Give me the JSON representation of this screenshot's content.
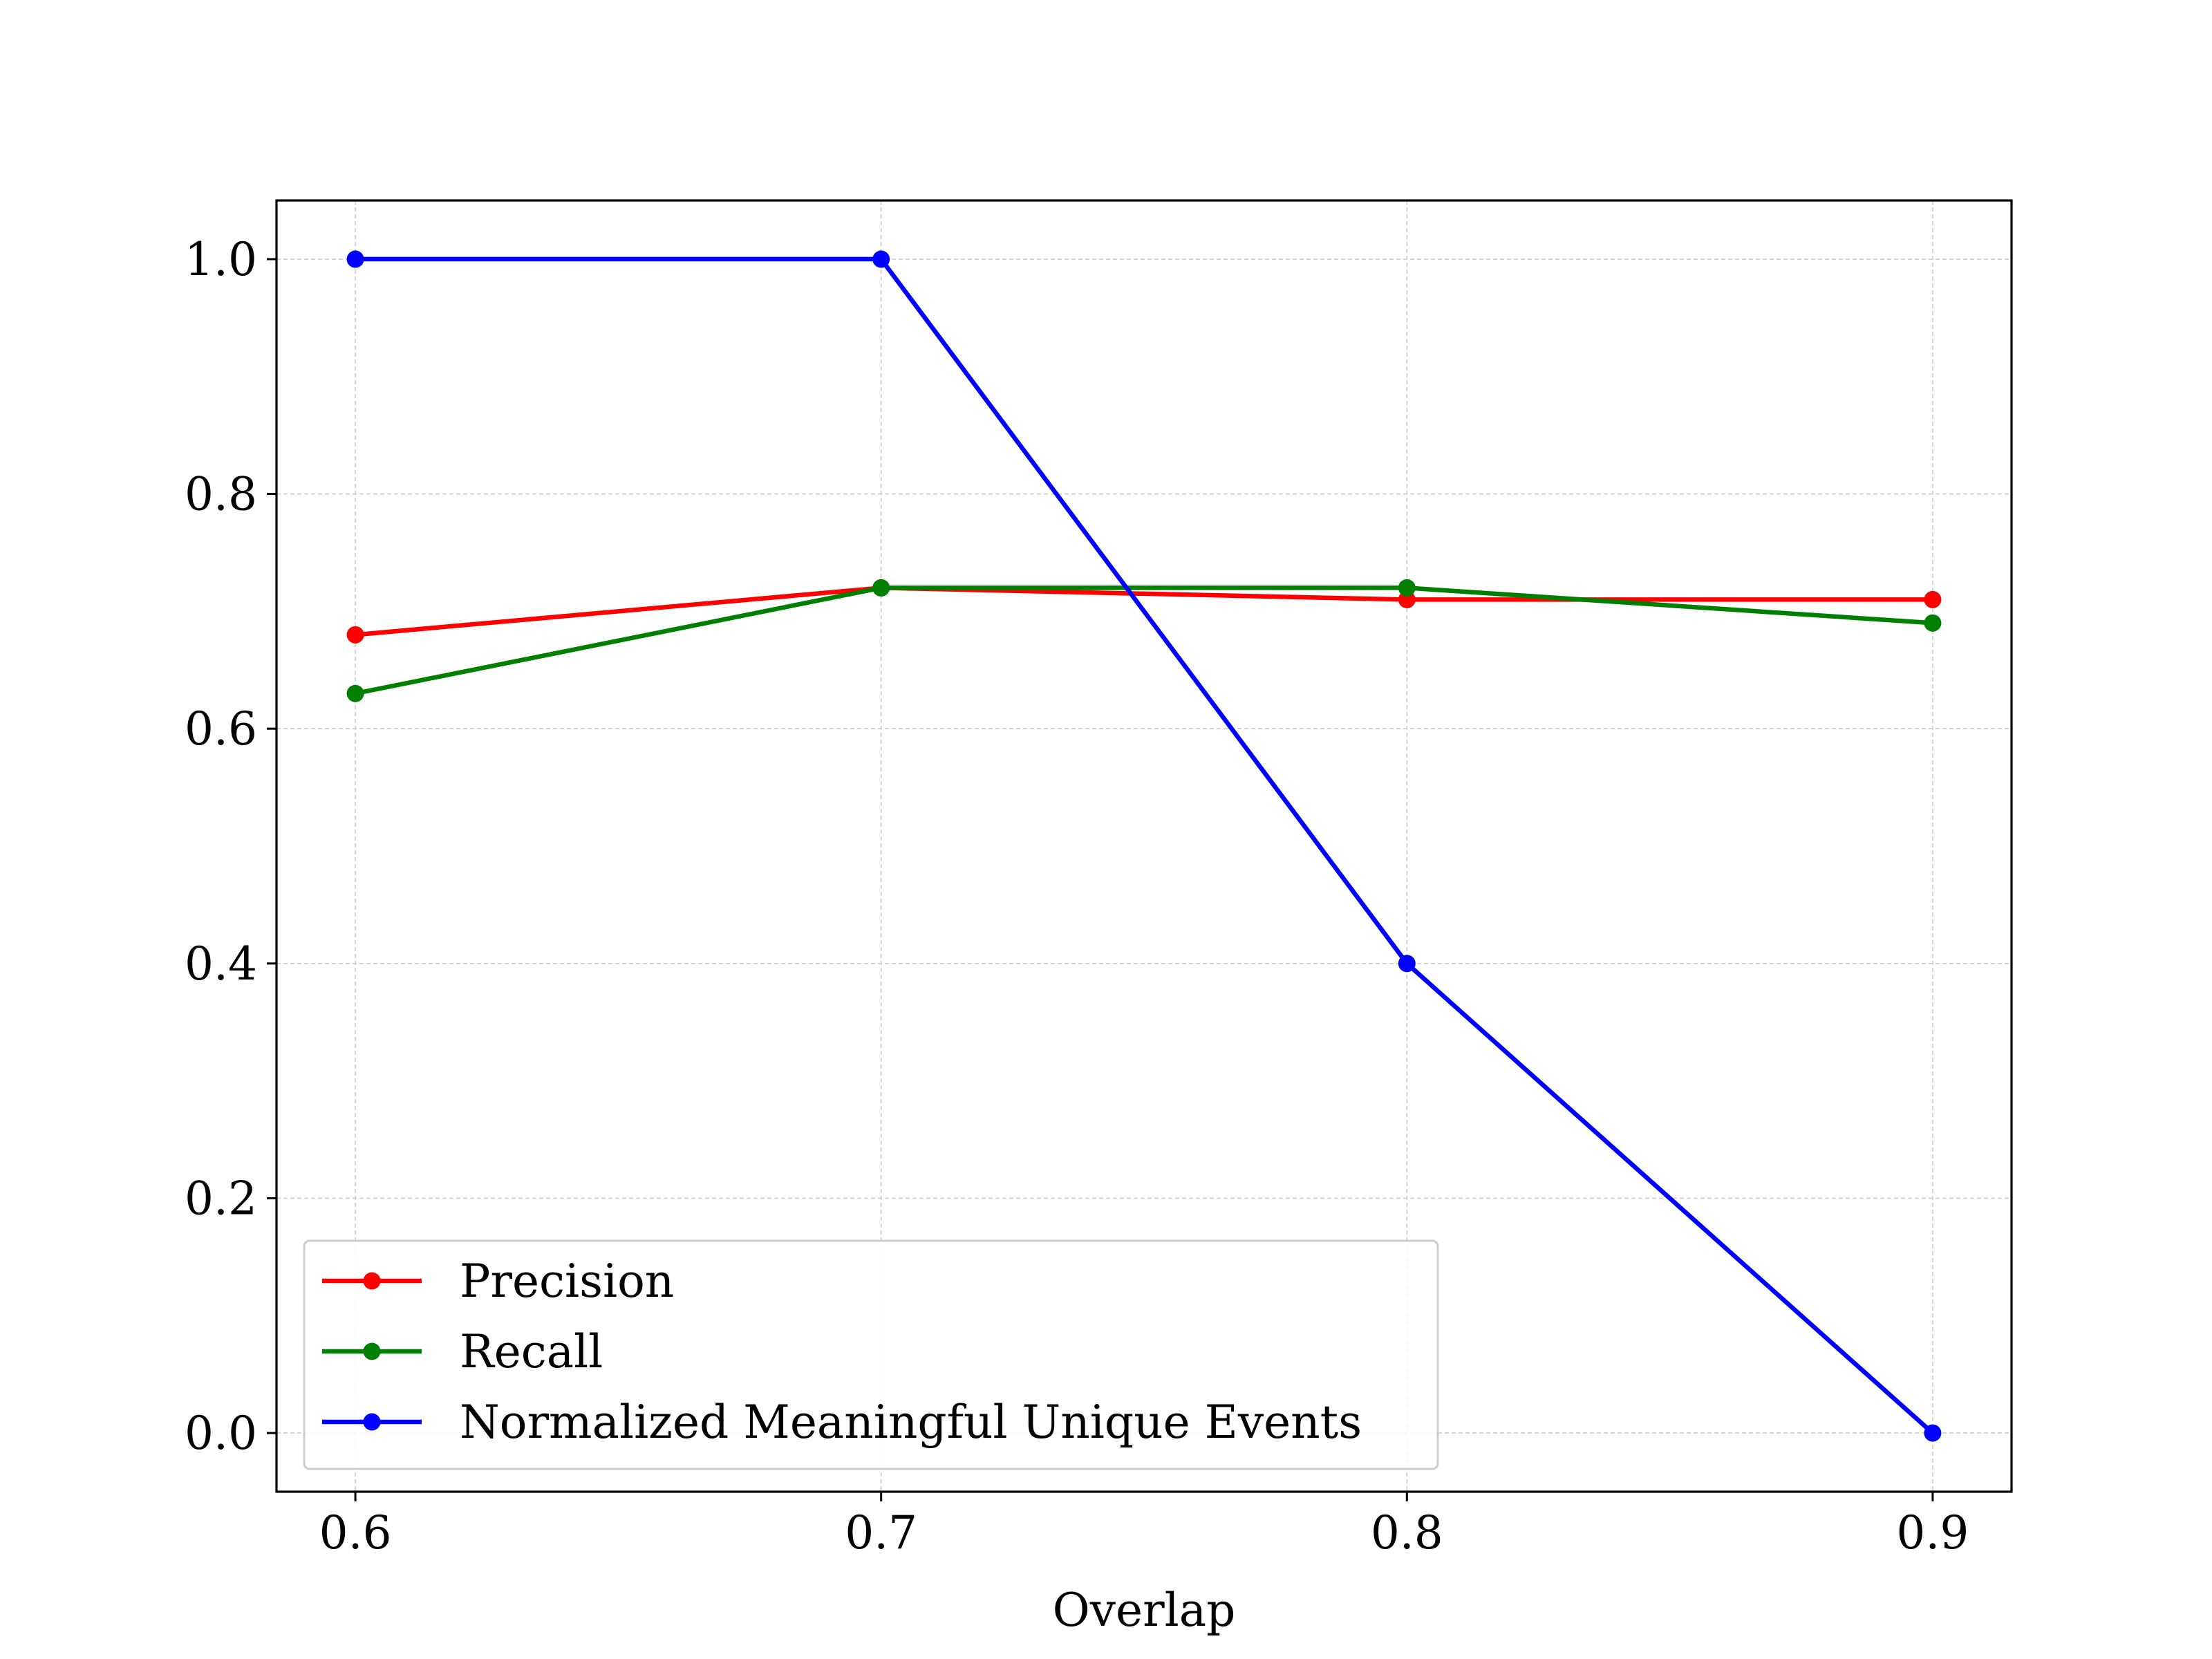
{
  "chart_data": {
    "type": "line",
    "title": "",
    "xlabel": "Overlap",
    "ylabel": "",
    "x": [
      0.6,
      0.7,
      0.8,
      0.9
    ],
    "xlim": [
      0.585,
      0.915
    ],
    "ylim": [
      -0.05,
      1.05
    ],
    "xticks": [
      0.6,
      0.7,
      0.8,
      0.9
    ],
    "xtick_labels": [
      "0.6",
      "0.7",
      "0.8",
      "0.9"
    ],
    "yticks": [
      0.0,
      0.2,
      0.4,
      0.6,
      0.8,
      1.0
    ],
    "ytick_labels": [
      "0.0",
      "0.2",
      "0.4",
      "0.6",
      "0.8",
      "1.0"
    ],
    "grid": true,
    "legend_position": "lower-left",
    "series": [
      {
        "name": "Precision",
        "color": "#ff0000",
        "values": [
          0.68,
          0.72,
          0.71,
          0.71
        ]
      },
      {
        "name": "Recall",
        "color": "#008000",
        "values": [
          0.63,
          0.72,
          0.72,
          0.69
        ]
      },
      {
        "name": "Normalized Meaningful Unique Events",
        "color": "#0000ff",
        "values": [
          1.0,
          1.0,
          0.4,
          0.0
        ]
      }
    ]
  }
}
